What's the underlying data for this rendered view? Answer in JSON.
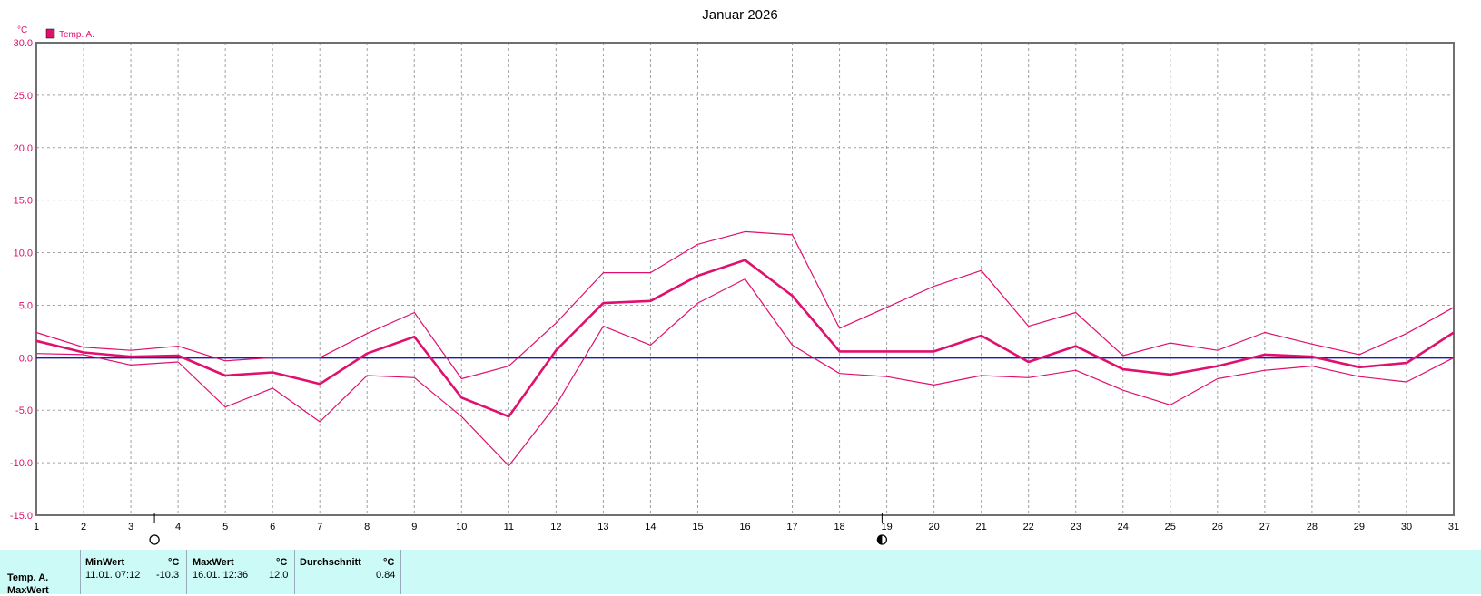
{
  "chart_data": {
    "type": "line",
    "title": "Januar 2026",
    "ylabel": "°C",
    "legend": "Temp. A.",
    "legend_color": "#e0106e",
    "zero_line_color": "#1a1ab4",
    "xlim": [
      1,
      31
    ],
    "ylim": [
      -15,
      30
    ],
    "grid": true,
    "x_ticks": [
      1,
      2,
      3,
      4,
      5,
      6,
      7,
      8,
      9,
      10,
      11,
      12,
      13,
      14,
      15,
      16,
      17,
      18,
      19,
      20,
      21,
      22,
      23,
      24,
      25,
      26,
      27,
      28,
      29,
      30,
      31
    ],
    "y_ticks": [
      "30.0",
      "25.0",
      "20.0",
      "15.0",
      "10.0",
      "5.0",
      "0.0",
      "-5.0",
      "-10.0",
      "-15.0"
    ],
    "x": [
      1,
      2,
      3,
      4,
      5,
      6,
      7,
      8,
      9,
      10,
      11,
      12,
      13,
      14,
      15,
      16,
      17,
      18,
      19,
      20,
      21,
      22,
      23,
      24,
      25,
      26,
      27,
      28,
      29,
      30,
      31
    ],
    "series": [
      {
        "name": "Temp. A.",
        "role": "average",
        "values": [
          1.6,
          0.5,
          0.1,
          0.2,
          -1.7,
          -1.4,
          -2.5,
          0.4,
          2.0,
          -3.8,
          -5.6,
          0.7,
          5.2,
          5.4,
          7.8,
          9.3,
          5.9,
          0.6,
          0.6,
          0.6,
          2.1,
          -0.4,
          1.1,
          -1.1,
          -1.6,
          -0.8,
          0.3,
          0.1,
          -0.9,
          -0.5,
          2.4
        ]
      },
      {
        "role": "max",
        "values": [
          2.4,
          1.0,
          0.7,
          1.1,
          -0.3,
          0.0,
          0.0,
          2.3,
          4.3,
          -2.0,
          -0.8,
          3.3,
          8.1,
          8.1,
          10.8,
          12.0,
          11.7,
          2.8,
          4.8,
          6.8,
          8.3,
          3.0,
          4.3,
          0.2,
          1.4,
          0.7,
          2.4,
          1.3,
          0.3,
          2.3,
          4.8
        ]
      },
      {
        "role": "min",
        "values": [
          0.4,
          0.3,
          -0.7,
          -0.4,
          -4.7,
          -2.9,
          -6.1,
          -1.7,
          -1.9,
          -5.6,
          -10.3,
          -4.5,
          3.0,
          1.2,
          5.2,
          7.5,
          1.2,
          -1.5,
          -1.8,
          -2.6,
          -1.7,
          -1.9,
          -1.2,
          -3.1,
          -4.5,
          -2.0,
          -1.2,
          -0.8,
          -1.8,
          -2.3,
          0.0
        ]
      }
    ],
    "moon_phases": [
      {
        "x": 3.5,
        "phase": "full"
      },
      {
        "x": 18.9,
        "phase": "last-quarter"
      }
    ]
  },
  "stats": {
    "row_label": "Temp. A.",
    "row_label2": "MaxWert",
    "min_header": "MinWert",
    "min_unit": "°C",
    "min_time": "11.01.  07:12",
    "min_value": "-10.3",
    "max_header": "MaxWert",
    "max_unit": "°C",
    "max_time": "16.01.  12:36",
    "max_value": "12.0",
    "avg_header": "Durchschnitt",
    "avg_unit": "°C",
    "avg_value": "0.84"
  }
}
